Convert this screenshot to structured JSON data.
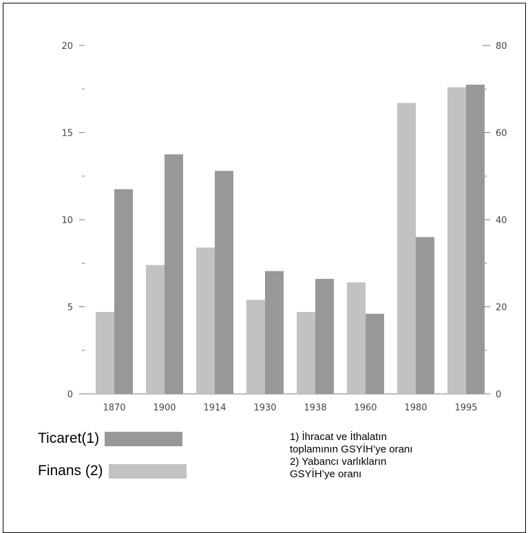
{
  "chart_data": {
    "type": "bar",
    "categories": [
      "1870",
      "1900",
      "1914",
      "1930",
      "1938",
      "1960",
      "1980",
      "1995"
    ],
    "series": [
      {
        "name": "Finans (2)",
        "axis": "left",
        "color": "#c2c2c2",
        "values": [
          4.7,
          7.4,
          8.4,
          5.4,
          4.7,
          6.4,
          16.7,
          17.6
        ]
      },
      {
        "name": "Ticaret(1)",
        "axis": "right",
        "color": "#989898",
        "values": [
          47,
          55,
          51.2,
          28.2,
          26.4,
          18.4,
          36,
          71
        ]
      }
    ],
    "y_left": {
      "ticks": [
        "0",
        "5",
        "10",
        "15",
        "20"
      ],
      "ylim": [
        0,
        20
      ]
    },
    "y_right": {
      "ticks": [
        "0",
        "20",
        "40",
        "60",
        "80"
      ],
      "ylim": [
        0,
        80
      ]
    },
    "grid": false,
    "legend_position": "bottom-left"
  },
  "legend": {
    "items": [
      {
        "label": "Ticaret(1)",
        "color": "#989898"
      },
      {
        "label": "Finans (2)",
        "color": "#c2c2c2"
      }
    ]
  },
  "notes": [
    "1) İhracat ve İthalatın",
    "toplamının GSYİH’ye oranı",
    "2) Yabancı varlıkların",
    "GSYİH’ye oranı"
  ]
}
